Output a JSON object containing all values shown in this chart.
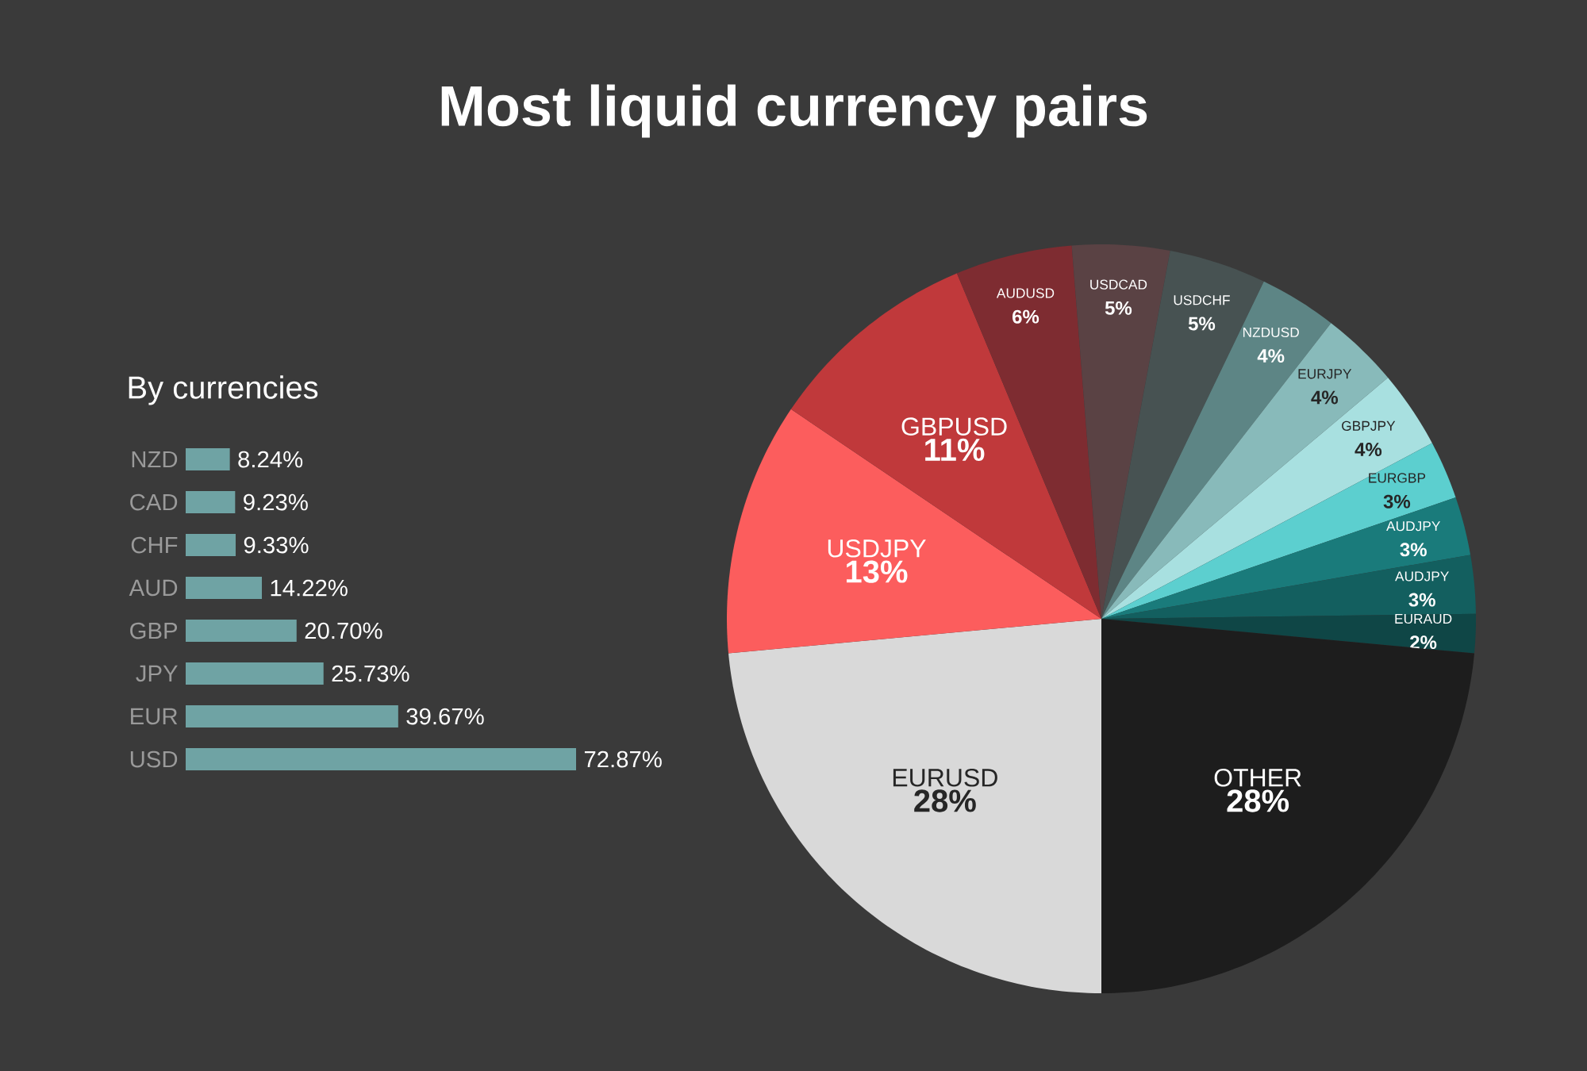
{
  "chart_data": [
    {
      "type": "pie",
      "title": "Most liquid currency pairs",
      "categories": [
        "EURUSD",
        "USDJPY",
        "GBPUSD",
        "AUDUSD",
        "USDCAD",
        "USDCHF",
        "NZDUSD",
        "EURJPY",
        "GBPJPY",
        "EURGBP",
        "AUDJPY",
        "AUDJPY",
        "EURAUD",
        "OTHER"
      ],
      "values": [
        28,
        13,
        11,
        6,
        5,
        5,
        4,
        4,
        4,
        3,
        3,
        3,
        2,
        28
      ],
      "colors": [
        "#d9d9d9",
        "#fc5d5d",
        "#c0393b",
        "#7e2c31",
        "#5a4244",
        "#475252",
        "#5d8585",
        "#88baba",
        "#a8e0e0",
        "#5ccfcf",
        "#1a7b7b",
        "#135f5f",
        "#0f4646",
        "#1d1d1d"
      ],
      "value_labels": [
        "28%",
        "13%",
        "11%",
        "6%",
        "5%",
        "5%",
        "4%",
        "4%",
        "4%",
        "3%",
        "3%",
        "3%",
        "2%",
        "28%"
      ]
    },
    {
      "type": "bar",
      "orientation": "horizontal",
      "title": "By currencies",
      "categories": [
        "NZD",
        "CAD",
        "CHF",
        "AUD",
        "GBP",
        "JPY",
        "EUR",
        "USD"
      ],
      "values": [
        8.24,
        9.23,
        9.33,
        14.22,
        20.7,
        25.73,
        39.67,
        72.87
      ],
      "color": "#6fa3a4",
      "value_labels": [
        "8.24%",
        "9.23%",
        "9.33%",
        "14.22%",
        "20.70%",
        "25.73%",
        "39.67%",
        "72.87%"
      ]
    }
  ]
}
